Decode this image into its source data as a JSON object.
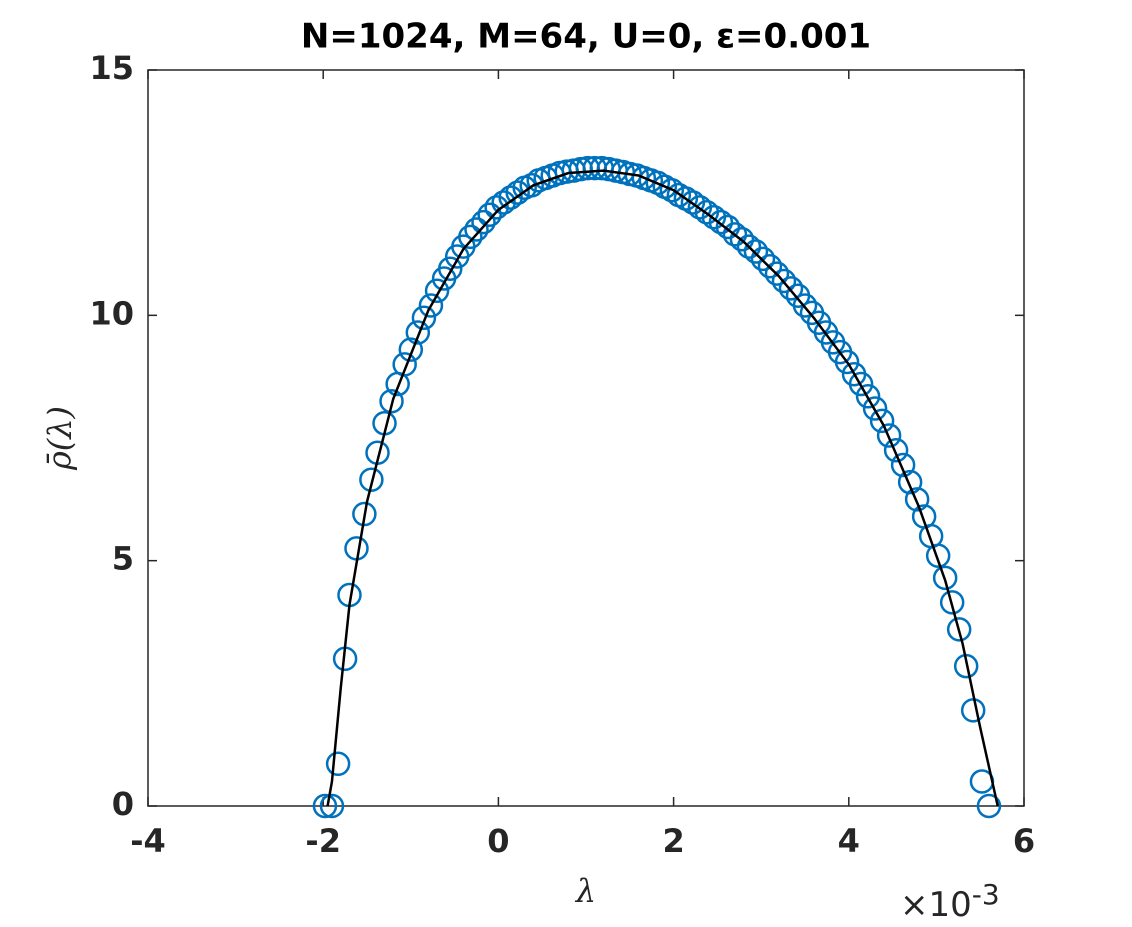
{
  "chart_data": {
    "type": "scatter",
    "title": "N=1024, M=64, U=0, ε=0.001",
    "xlabel": "λ",
    "ylabel": "ρ̄(λ)",
    "x_multiplier": {
      "base": "×10",
      "exponent": "-3"
    },
    "xlim": [
      -4,
      6
    ],
    "ylim": [
      0,
      15
    ],
    "xticks": [
      -4,
      -2,
      0,
      2,
      4,
      6
    ],
    "yticks": [
      0,
      5,
      10,
      15
    ],
    "grid": false,
    "series": [
      {
        "type": "scatter",
        "color": "#0072bd",
        "x": [
          -1.98,
          -1.9,
          -1.83,
          -1.75,
          -1.7,
          -1.62,
          -1.53,
          -1.45,
          -1.38,
          -1.3,
          -1.22,
          -1.15,
          -1.07,
          -1.0,
          -0.92,
          -0.85,
          -0.77,
          -0.7,
          -0.62,
          -0.55,
          -0.47,
          -0.4,
          -0.32,
          -0.25,
          -0.17,
          -0.1,
          -0.02,
          0.06,
          0.14,
          0.22,
          0.3,
          0.38,
          0.46,
          0.54,
          0.62,
          0.7,
          0.78,
          0.86,
          0.94,
          1.02,
          1.1,
          1.18,
          1.26,
          1.34,
          1.42,
          1.5,
          1.58,
          1.66,
          1.74,
          1.82,
          1.9,
          1.98,
          2.06,
          2.14,
          2.22,
          2.3,
          2.38,
          2.46,
          2.54,
          2.62,
          2.7,
          2.78,
          2.86,
          2.94,
          3.02,
          3.1,
          3.18,
          3.26,
          3.34,
          3.42,
          3.5,
          3.58,
          3.66,
          3.74,
          3.82,
          3.9,
          3.98,
          4.06,
          4.14,
          4.22,
          4.3,
          4.38,
          4.46,
          4.54,
          4.62,
          4.7,
          4.78,
          4.86,
          4.94,
          5.02,
          5.1,
          5.18,
          5.26,
          5.34,
          5.42,
          5.52,
          5.6
        ],
        "values": [
          0,
          0,
          0.86,
          3.0,
          4.3,
          5.25,
          5.95,
          6.65,
          7.2,
          7.8,
          8.25,
          8.6,
          9.0,
          9.3,
          9.65,
          9.95,
          10.2,
          10.5,
          10.75,
          10.95,
          11.2,
          11.4,
          11.6,
          11.75,
          11.9,
          12.05,
          12.2,
          12.3,
          12.4,
          12.5,
          12.6,
          12.65,
          12.75,
          12.8,
          12.85,
          12.9,
          12.93,
          12.95,
          12.98,
          13.0,
          13.0,
          13.0,
          12.98,
          12.95,
          12.92,
          12.88,
          12.85,
          12.8,
          12.75,
          12.7,
          12.62,
          12.55,
          12.45,
          12.38,
          12.3,
          12.2,
          12.1,
          12.0,
          11.9,
          11.8,
          11.65,
          11.55,
          11.4,
          11.3,
          11.15,
          11.0,
          10.85,
          10.7,
          10.55,
          10.4,
          10.2,
          10.05,
          9.85,
          9.65,
          9.45,
          9.25,
          9.05,
          8.8,
          8.6,
          8.35,
          8.1,
          7.85,
          7.55,
          7.25,
          6.95,
          6.6,
          6.25,
          5.9,
          5.5,
          5.1,
          4.65,
          4.15,
          3.6,
          2.85,
          1.95,
          0.5,
          0
        ]
      },
      {
        "type": "line",
        "color": "#000000",
        "x": [
          -1.95,
          -1.9,
          -1.8,
          -1.7,
          -1.5,
          -1.2,
          -0.8,
          -0.4,
          0,
          0.4,
          0.8,
          1.2,
          1.6,
          2.0,
          2.4,
          2.8,
          3.2,
          3.6,
          4.0,
          4.4,
          4.8,
          5.1,
          5.3,
          5.5,
          5.65,
          5.7
        ],
        "values": [
          0,
          0.5,
          2.4,
          4.1,
          6.2,
          8.3,
          10.1,
          11.35,
          12.15,
          12.65,
          12.9,
          12.95,
          12.85,
          12.55,
          12.05,
          11.5,
          10.8,
          9.95,
          9.0,
          7.75,
          6.1,
          4.6,
          3.3,
          1.6,
          0.4,
          0
        ]
      }
    ]
  }
}
